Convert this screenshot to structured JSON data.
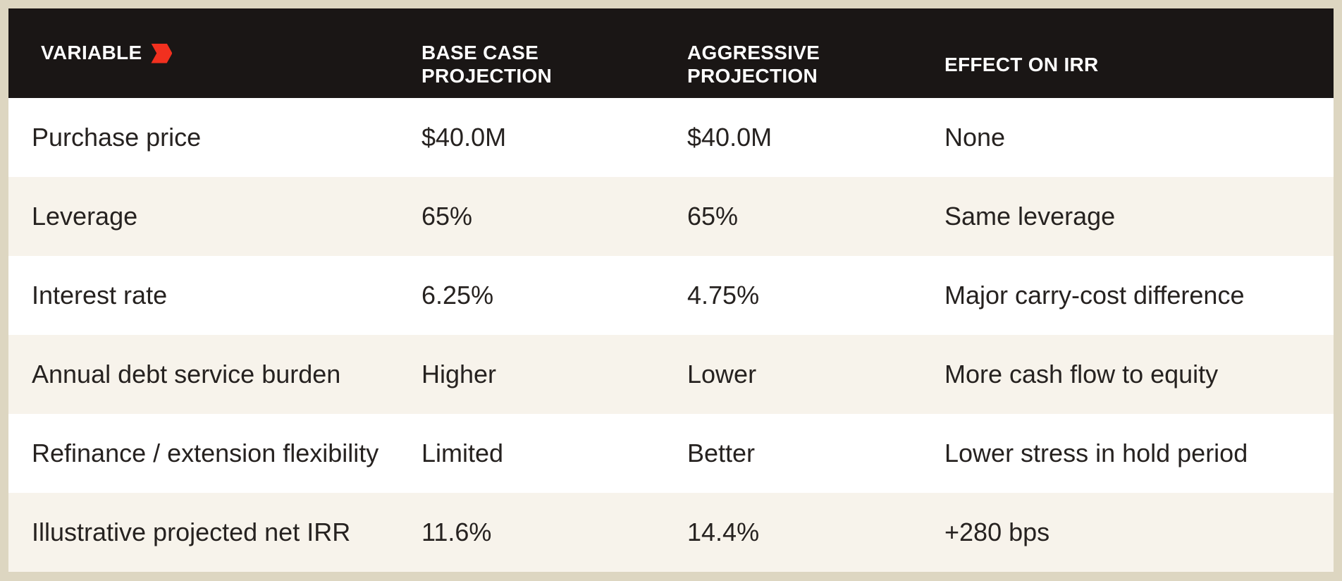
{
  "colors": {
    "page_background": "#DDD6C1",
    "header_background": "#1A1615",
    "header_text": "#FFFFFF",
    "row_white": "#FFFFFF",
    "row_cream": "#F7F3EB",
    "body_text": "#262220",
    "accent_red": "#F1301F"
  },
  "table": {
    "columns": [
      {
        "label": "VARIABLE",
        "icon": "red-chevron-flag"
      },
      {
        "label": "BASE CASE\nPROJECTION"
      },
      {
        "label": "AGGRESSIVE\nPROJECTION"
      },
      {
        "label": "EFFECT ON IRR"
      }
    ],
    "rows": [
      [
        "Purchase price",
        "$40.0M",
        "$40.0M",
        "None"
      ],
      [
        "Leverage",
        "65%",
        "65%",
        "Same leverage"
      ],
      [
        "Interest rate",
        "6.25%",
        "4.75%",
        "Major carry-cost difference"
      ],
      [
        "Annual debt service burden",
        "Higher",
        "Lower",
        "More cash flow to equity"
      ],
      [
        "Refinance / extension flexibility",
        "Limited",
        "Better",
        "Lower stress in hold period"
      ],
      [
        "Illustrative projected net IRR",
        "11.6%",
        "14.4%",
        "+280 bps"
      ]
    ]
  }
}
